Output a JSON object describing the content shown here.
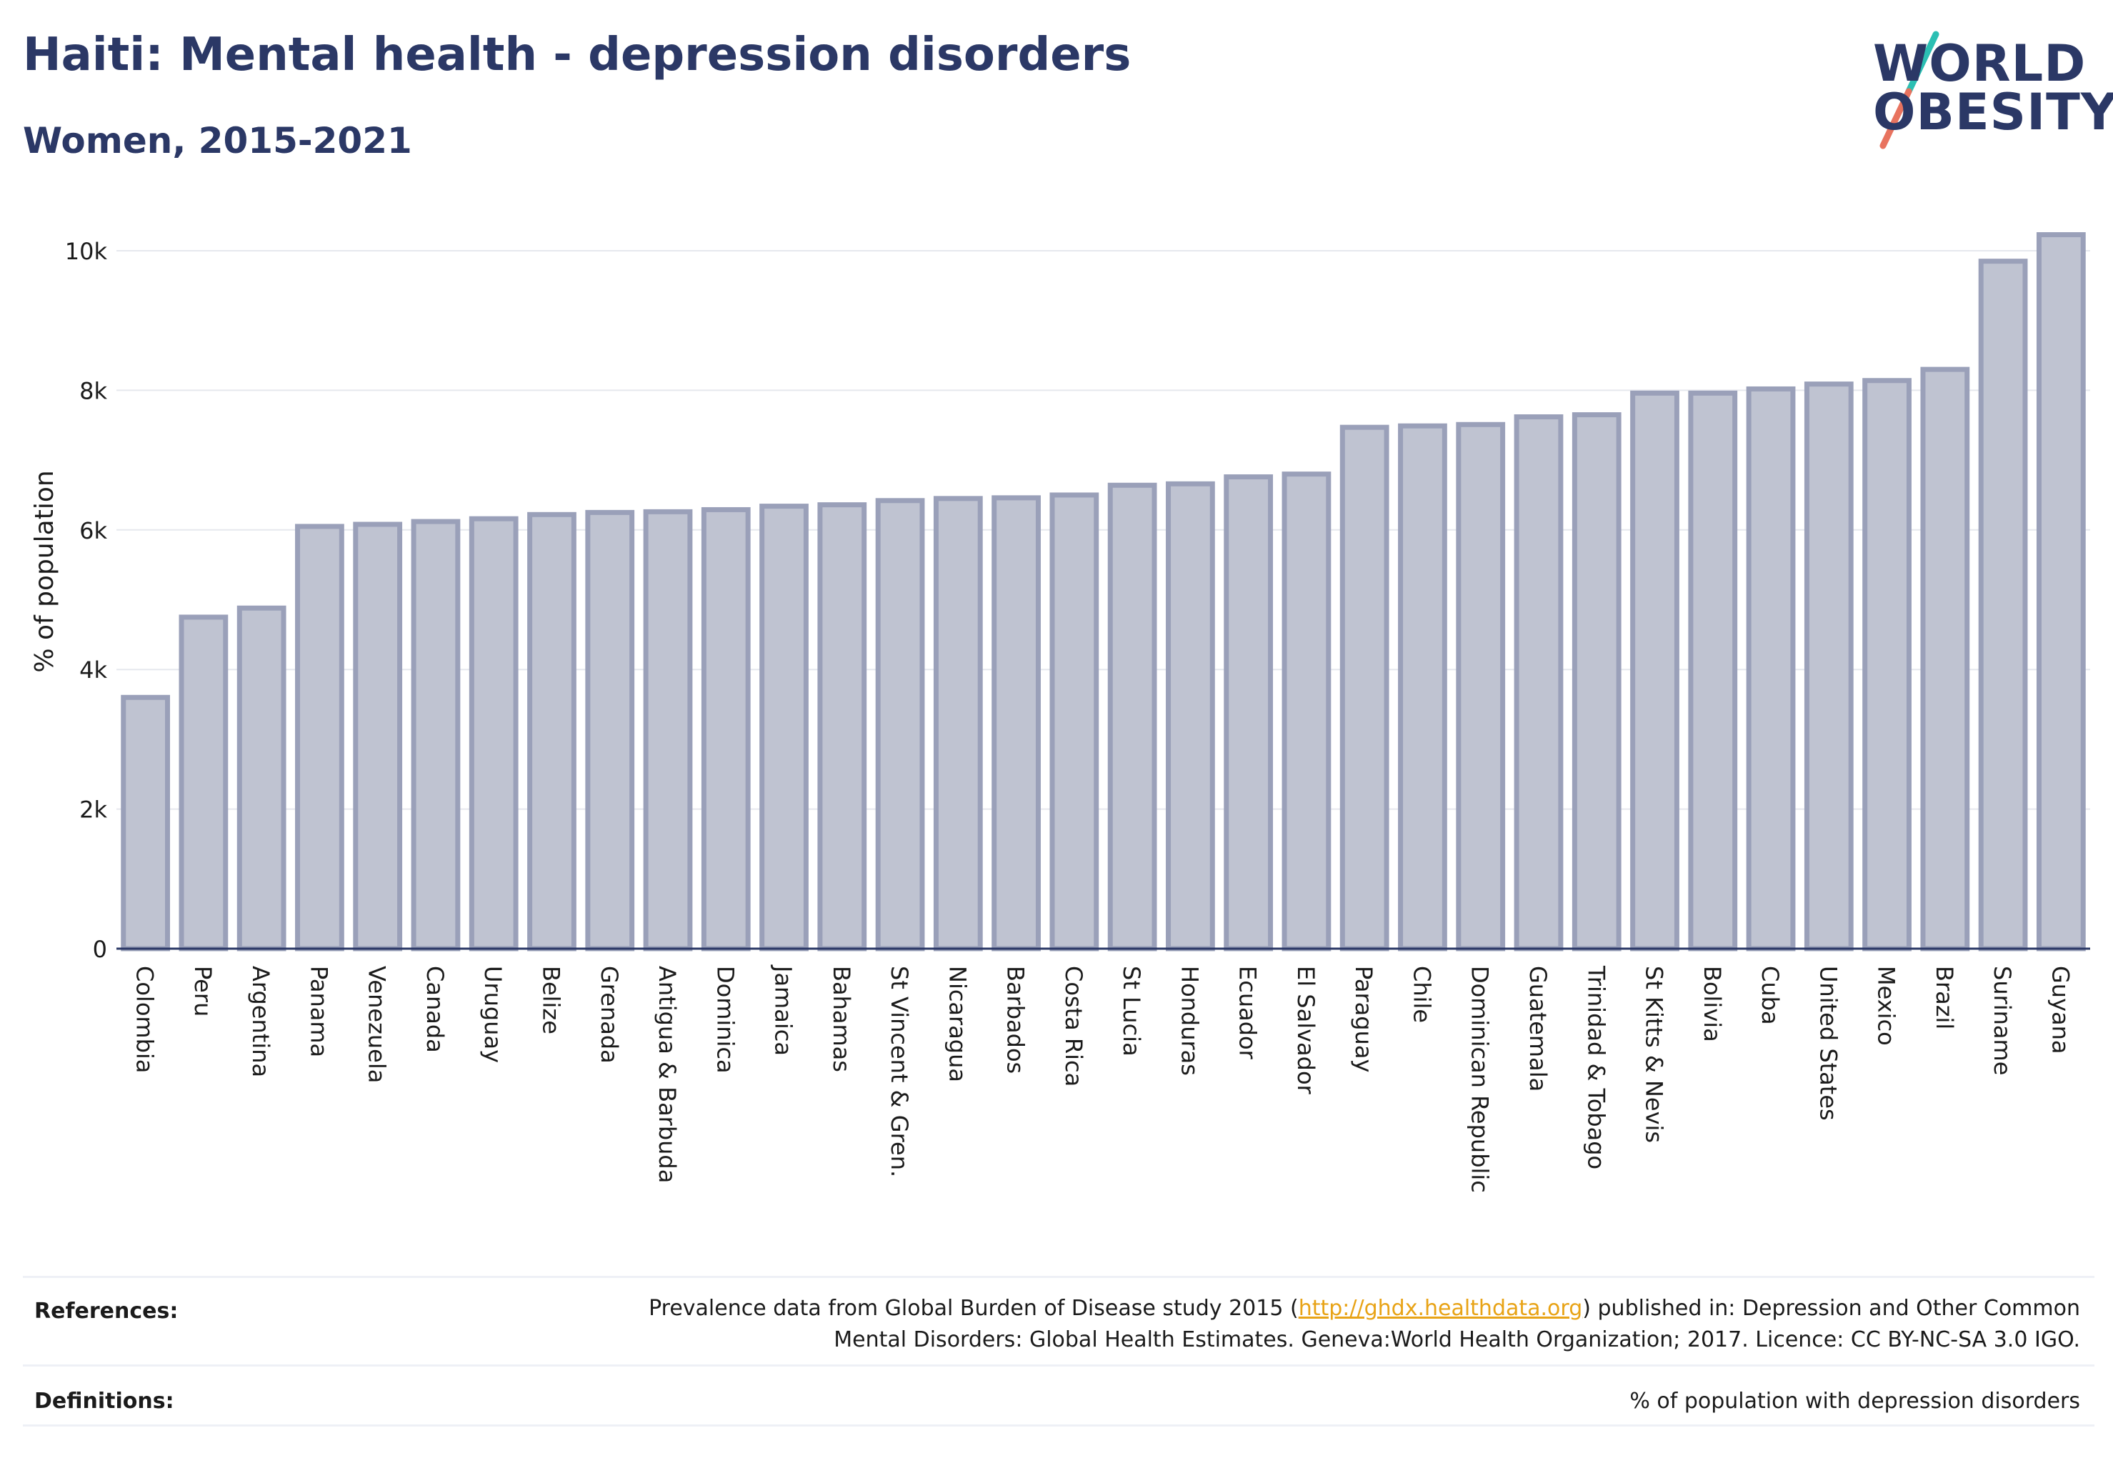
{
  "header": {
    "title": "Haiti: Mental health - depression disorders",
    "subtitle": "Women, 2015-2021"
  },
  "logo": {
    "line1": "WORLD",
    "line2": "OBESITY",
    "accent_teal": "#2bbfb3",
    "accent_coral": "#e8735f"
  },
  "chart_data": {
    "type": "bar",
    "ylabel": "% of population",
    "ylim": [
      0,
      10500
    ],
    "yticks": [
      0,
      2000,
      4000,
      6000,
      8000,
      10000
    ],
    "ytick_labels": [
      "0",
      "2k",
      "4k",
      "6k",
      "8k",
      "10k"
    ],
    "grid": true,
    "categories": [
      "Colombia",
      "Peru",
      "Argentina",
      "Panama",
      "Venezuela",
      "Canada",
      "Uruguay",
      "Belize",
      "Grenada",
      "Antigua & Barbuda",
      "Dominica",
      "Jamaica",
      "Bahamas",
      "St Vincent & Gren.",
      "Nicaragua",
      "Barbados",
      "Costa Rica",
      "St Lucia",
      "Honduras",
      "Ecuador",
      "El Salvador",
      "Paraguay",
      "Chile",
      "Dominican Republic",
      "Guatemala",
      "Trinidad & Tobago",
      "St Kitts & Nevis",
      "Bolivia",
      "Cuba",
      "United States",
      "Mexico",
      "Brazil",
      "Suriname",
      "Guyana"
    ],
    "values": [
      3600,
      4750,
      4880,
      6050,
      6080,
      6120,
      6160,
      6220,
      6250,
      6260,
      6290,
      6340,
      6360,
      6420,
      6450,
      6460,
      6500,
      6640,
      6660,
      6760,
      6800,
      7470,
      7490,
      7510,
      7620,
      7650,
      7960,
      7960,
      8020,
      8090,
      8140,
      8300,
      9850,
      10230
    ],
    "bar_color": "#bfc3d1",
    "bar_edge_color": "#9aa0b9"
  },
  "footer": {
    "references_label": "References:",
    "references_before": "Prevalence data from Global Burden of Disease study 2015 (",
    "references_link": "http://ghdx.healthdata.org",
    "references_after_1": ") published in: Depression and Other Common",
    "references_line2": "Mental Disorders: Global Health Estimates. Geneva:World Health Organization; 2017. Licence: CC BY-NC-SA 3.0 IGO.",
    "definitions_label": "Definitions:",
    "definitions_text": "% of population with depression disorders"
  }
}
